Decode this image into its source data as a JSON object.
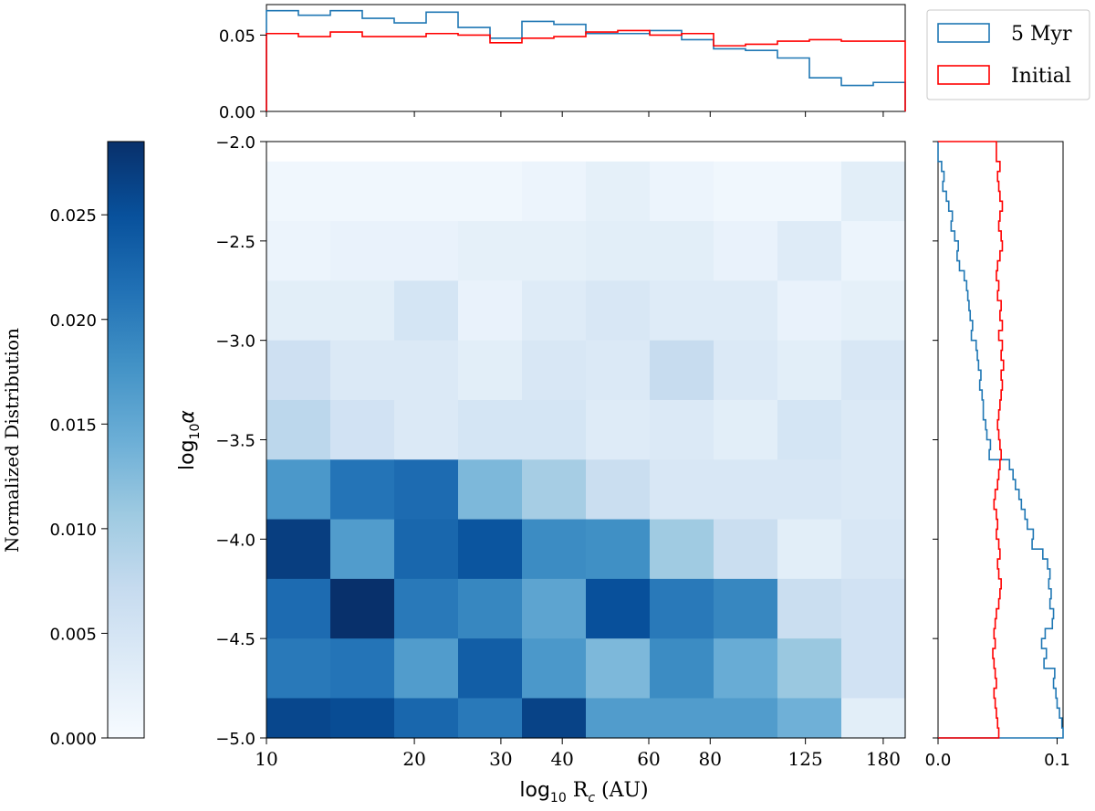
{
  "chart_data": {
    "type": "heatmap",
    "heatmap": {
      "xlabel_prefix": "log",
      "xlabel_sub": "10",
      "xlabel_suffix": " R",
      "xlabel_sub2": "c",
      "xlabel_units": " (AU)",
      "ylabel_prefix": "log",
      "ylabel_sub": "10",
      "ylabel_symbol": "α",
      "x_ticks": [
        {
          "label": "10",
          "value": 10
        },
        {
          "label": "20",
          "value": 20
        },
        {
          "label": "30",
          "value": 30
        },
        {
          "label": "40",
          "value": 40
        },
        {
          "label": "60",
          "value": 60
        },
        {
          "label": "80",
          "value": 80
        },
        {
          "label": "125",
          "value": 125
        },
        {
          "label": "180",
          "value": 180
        }
      ],
      "x_range_log10": [
        1.0,
        2.3
      ],
      "y_ticks": [
        {
          "label": "−2.0",
          "value": -2.0
        },
        {
          "label": "−2.5",
          "value": -2.5
        },
        {
          "label": "−3.0",
          "value": -3.0
        },
        {
          "label": "−3.5",
          "value": -3.5
        },
        {
          "label": "−4.0",
          "value": -4.0
        },
        {
          "label": "−4.5",
          "value": -4.5
        },
        {
          "label": "−5.0",
          "value": -5.0
        }
      ],
      "ylim": [
        -5.0,
        -2.0
      ],
      "n_cols": 10,
      "row_edges": [
        -2.1,
        -2.4,
        -2.7,
        -3.0,
        -3.3,
        -3.6,
        -3.9,
        -4.2,
        -4.5,
        -4.8,
        -5.0
      ],
      "values_top_to_bottom": [
        [
          0.001,
          0.001,
          0.001,
          0.001,
          0.0015,
          0.0025,
          0.0015,
          0.001,
          0.001,
          0.003
        ],
        [
          0.0015,
          0.002,
          0.002,
          0.0025,
          0.0025,
          0.003,
          0.003,
          0.002,
          0.0035,
          0.0015
        ],
        [
          0.003,
          0.003,
          0.005,
          0.002,
          0.0035,
          0.0045,
          0.0035,
          0.0035,
          0.002,
          0.0025
        ],
        [
          0.006,
          0.004,
          0.004,
          0.003,
          0.0045,
          0.004,
          0.007,
          0.004,
          0.003,
          0.0045
        ],
        [
          0.008,
          0.0055,
          0.004,
          0.005,
          0.005,
          0.0035,
          0.004,
          0.003,
          0.005,
          0.004
        ],
        [
          0.017,
          0.021,
          0.022,
          0.013,
          0.01,
          0.0065,
          0.0045,
          0.0045,
          0.0045,
          0.004
        ],
        [
          0.027,
          0.0165,
          0.0225,
          0.0245,
          0.0185,
          0.018,
          0.0105,
          0.0065,
          0.003,
          0.0045
        ],
        [
          0.022,
          0.0285,
          0.0205,
          0.019,
          0.0155,
          0.025,
          0.0205,
          0.019,
          0.0065,
          0.0055
        ],
        [
          0.0205,
          0.021,
          0.0165,
          0.0235,
          0.017,
          0.013,
          0.0185,
          0.0145,
          0.011,
          0.0055
        ],
        [
          0.026,
          0.0255,
          0.0225,
          0.0205,
          0.0265,
          0.0165,
          0.0165,
          0.0165,
          0.014,
          0.003
        ]
      ]
    },
    "colorbar": {
      "label": "Normalized Distribution",
      "range": [
        0.0,
        0.0285
      ],
      "ticks": [
        {
          "label": "0.000",
          "value": 0.0
        },
        {
          "label": "0.005",
          "value": 0.005
        },
        {
          "label": "0.010",
          "value": 0.01
        },
        {
          "label": "0.015",
          "value": 0.015
        },
        {
          "label": "0.020",
          "value": 0.02
        },
        {
          "label": "0.025",
          "value": 0.025
        }
      ],
      "color_stops": [
        "#f7fbff",
        "#deebf7",
        "#c6dbef",
        "#9ecae1",
        "#6baed6",
        "#4292c6",
        "#2171b5",
        "#08519c",
        "#08306b"
      ]
    },
    "top_histogram": {
      "type": "step",
      "ylim": [
        0.0,
        0.07
      ],
      "y_ticks": [
        {
          "label": "0.00",
          "value": 0.0
        },
        {
          "label": "0.05",
          "value": 0.05
        }
      ],
      "n_bins": 20,
      "series": [
        {
          "name": "5 Myr",
          "color": "#1f77b4",
          "values": [
            0.066,
            0.063,
            0.066,
            0.061,
            0.058,
            0.065,
            0.055,
            0.048,
            0.059,
            0.057,
            0.051,
            0.051,
            0.053,
            0.047,
            0.041,
            0.04,
            0.035,
            0.022,
            0.017,
            0.019
          ]
        },
        {
          "name": "Initial",
          "color": "#ff0000",
          "values": [
            0.051,
            0.049,
            0.052,
            0.049,
            0.049,
            0.051,
            0.05,
            0.045,
            0.048,
            0.049,
            0.052,
            0.053,
            0.05,
            0.051,
            0.043,
            0.044,
            0.046,
            0.047,
            0.046,
            0.046
          ]
        }
      ]
    },
    "right_histogram": {
      "type": "step",
      "xlim": [
        0.0,
        0.105
      ],
      "x_ticks": [
        {
          "label": "0.0",
          "value": 0.0
        },
        {
          "label": "0.1",
          "value": 0.1
        }
      ],
      "bin_edges": [
        -2.0,
        -2.1,
        -2.15,
        -2.2,
        -2.25,
        -2.3,
        -2.35,
        -2.4,
        -2.45,
        -2.5,
        -2.55,
        -2.6,
        -2.65,
        -2.7,
        -2.75,
        -2.8,
        -2.85,
        -2.9,
        -2.95,
        -3.0,
        -3.05,
        -3.1,
        -3.15,
        -3.2,
        -3.25,
        -3.3,
        -3.35,
        -3.4,
        -3.45,
        -3.5,
        -3.55,
        -3.6,
        -3.65,
        -3.7,
        -3.75,
        -3.8,
        -3.85,
        -3.9,
        -3.95,
        -4.0,
        -4.05,
        -4.1,
        -4.15,
        -4.2,
        -4.25,
        -4.3,
        -4.35,
        -4.4,
        -4.45,
        -4.5,
        -4.55,
        -4.6,
        -4.65,
        -4.7,
        -4.75,
        -4.8,
        -4.85,
        -4.9,
        -4.95,
        -5.0
      ],
      "series": [
        {
          "name": "5 Myr",
          "color": "#1f77b4",
          "values": [
            0.0,
            0.003,
            0.005,
            0.004,
            0.007,
            0.009,
            0.012,
            0.011,
            0.014,
            0.017,
            0.016,
            0.018,
            0.022,
            0.024,
            0.025,
            0.026,
            0.027,
            0.029,
            0.028,
            0.032,
            0.033,
            0.034,
            0.036,
            0.035,
            0.037,
            0.038,
            0.038,
            0.04,
            0.041,
            0.044,
            0.043,
            0.06,
            0.063,
            0.065,
            0.068,
            0.07,
            0.073,
            0.075,
            0.08,
            0.079,
            0.088,
            0.092,
            0.094,
            0.093,
            0.095,
            0.094,
            0.097,
            0.096,
            0.09,
            0.087,
            0.091,
            0.089,
            0.098,
            0.097,
            0.099,
            0.1,
            0.102,
            0.104,
            0.105
          ]
        },
        {
          "name": "Initial",
          "color": "#ff0000",
          "values": [
            0.049,
            0.052,
            0.05,
            0.051,
            0.052,
            0.054,
            0.052,
            0.051,
            0.053,
            0.054,
            0.052,
            0.05,
            0.049,
            0.051,
            0.05,
            0.053,
            0.052,
            0.054,
            0.051,
            0.054,
            0.053,
            0.055,
            0.053,
            0.054,
            0.053,
            0.052,
            0.051,
            0.05,
            0.051,
            0.052,
            0.053,
            0.052,
            0.051,
            0.05,
            0.048,
            0.047,
            0.049,
            0.05,
            0.049,
            0.051,
            0.052,
            0.05,
            0.051,
            0.053,
            0.052,
            0.051,
            0.049,
            0.048,
            0.047,
            0.048,
            0.046,
            0.047,
            0.048,
            0.049,
            0.047,
            0.048,
            0.049,
            0.05,
            0.051
          ]
        }
      ]
    },
    "legend": {
      "placement": "top-right",
      "entries": [
        {
          "label": "5 Myr",
          "color": "#1f77b4"
        },
        {
          "label": "Initial",
          "color": "#ff0000"
        }
      ]
    }
  }
}
